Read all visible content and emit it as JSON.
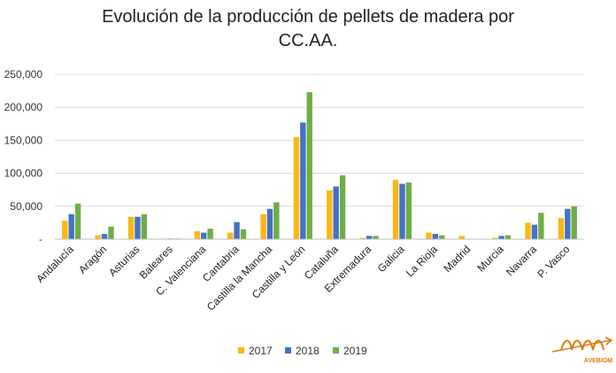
{
  "chart_data": {
    "type": "bar",
    "title": [
      "Evolución de la producción de pellets de madera por",
      "CC.AA."
    ],
    "xlabel": "",
    "ylabel": "",
    "ylim": [
      0,
      250000
    ],
    "yticks": [
      0,
      50000,
      100000,
      150000,
      200000,
      250000
    ],
    "ytick_labels": [
      "-",
      "50,000",
      "100,000",
      "150,000",
      "200,000",
      "250,000"
    ],
    "grid": true,
    "legend_position": "bottom",
    "categories": [
      "Andalucía",
      "Aragón",
      "Asturias",
      "Baleares",
      "C. Valenciana",
      "Cantabria",
      "Castilla la Mancha",
      "Castilla y León",
      "Cataluña",
      "Extremadura",
      "Galicia",
      "La Rioja",
      "Madrid",
      "Murcia",
      "Navarra",
      "P. Vasco"
    ],
    "series": [
      {
        "name": "2017",
        "color": "#fbb714",
        "values": [
          28000,
          6000,
          34000,
          1000,
          12000,
          10000,
          38000,
          155000,
          74000,
          2000,
          90000,
          10000,
          5000,
          2000,
          25000,
          32000
        ]
      },
      {
        "name": "2018",
        "color": "#4472c4",
        "values": [
          38000,
          8000,
          34000,
          1000,
          10000,
          26000,
          46000,
          177000,
          80000,
          5000,
          84000,
          8000,
          0,
          5000,
          22000,
          46000
        ]
      },
      {
        "name": "2019",
        "color": "#70ad47",
        "values": [
          54000,
          19000,
          38000,
          1000,
          16000,
          15000,
          56000,
          223000,
          97000,
          5000,
          86000,
          6000,
          0,
          6000,
          40000,
          50000
        ]
      }
    ]
  },
  "logo": {
    "text": "AVEBIOM",
    "color": "#e07a10"
  }
}
